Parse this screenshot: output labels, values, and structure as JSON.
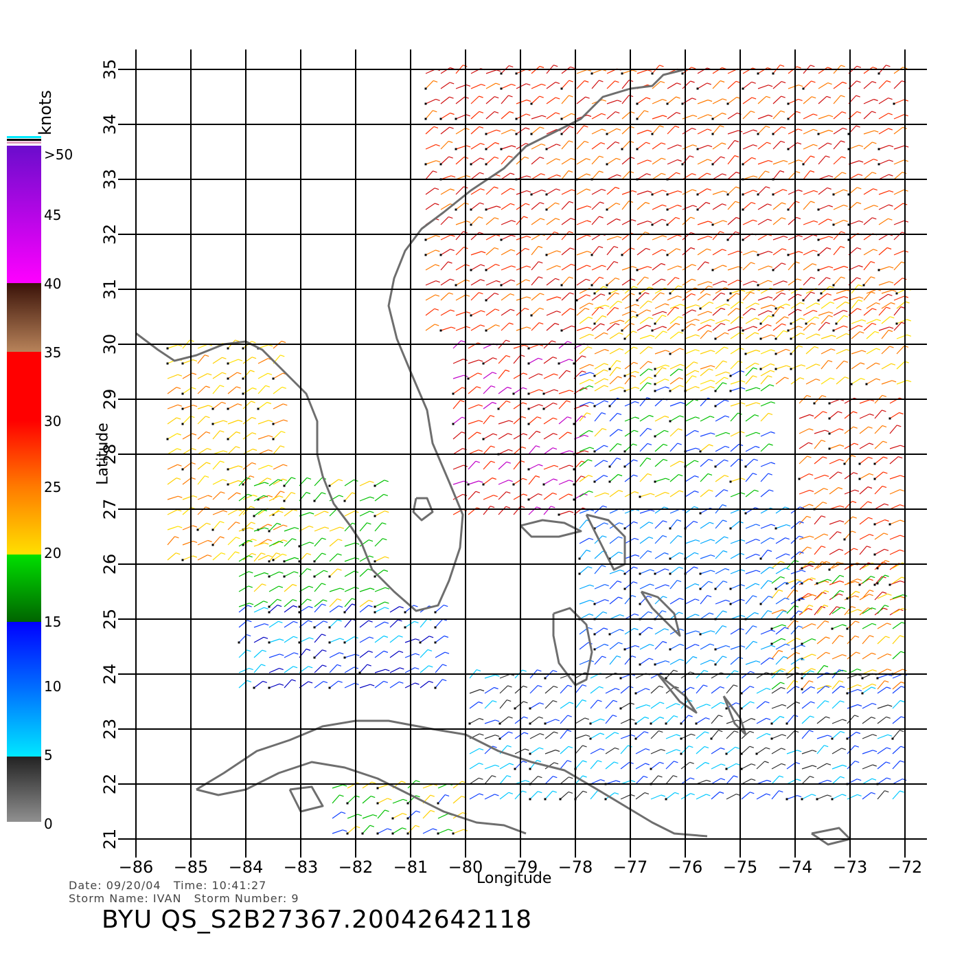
{
  "map": {
    "lon_ticks": [
      "−86",
      "−85",
      "−84",
      "−83",
      "−82",
      "−81",
      "−80",
      "−79",
      "−78",
      "−77",
      "−76",
      "−75",
      "−74",
      "−73",
      "−72"
    ],
    "lat_ticks": [
      "21",
      "22",
      "23",
      "24",
      "25",
      "26",
      "27",
      "28",
      "29",
      "30",
      "31",
      "32",
      "33",
      "34",
      "35"
    ],
    "xlabel": "Longitude",
    "ylabel": "Latitude",
    "lon_range": [
      -86,
      -72
    ],
    "lat_range": [
      21,
      35
    ]
  },
  "legend": {
    "unit": "knots",
    "labels": [
      ">50",
      "45",
      "40",
      "35",
      "30",
      "25",
      "20",
      "15",
      "10",
      "5",
      "0"
    ],
    "colors": [
      "#6a0dcc",
      "#c000c8",
      "#ff00ff",
      "#3a1208",
      "#b8835a",
      "#ff0000",
      "#ff7a00",
      "#ffe000",
      "#00e000",
      "#0000ff",
      "#00e8ff",
      "#000000",
      "#909090"
    ]
  },
  "footer": {
    "line1": "Date: 09/20/04   Time: 10:41:27",
    "line2": "Storm Name: IVAN   Storm Number: 9",
    "file_id": "BYU QS_S2B27367.20042642118"
  }
}
